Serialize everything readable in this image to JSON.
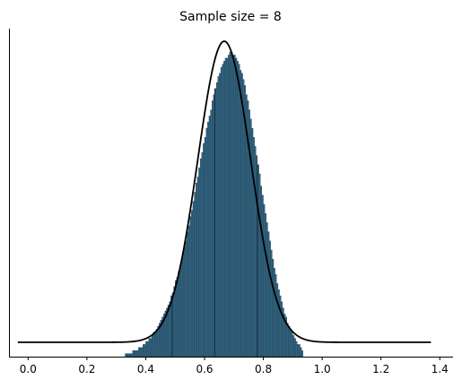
{
  "chart_data": {
    "type": "histogram",
    "title": "Sample size = 8",
    "xlabel": "",
    "ylabel": "",
    "xlim": [
      -0.065,
      1.445
    ],
    "x_ticks": [
      0.0,
      0.2,
      0.4,
      0.6,
      0.8,
      1.0,
      1.2,
      1.4
    ],
    "x_tick_labels": [
      "0.0",
      "0.2",
      "0.4",
      "0.6",
      "0.8",
      "1.0",
      "1.2",
      "1.4"
    ],
    "y_ticks_visible": false,
    "grid": false,
    "legend": "none",
    "spines": [
      "left",
      "bottom"
    ],
    "bar_color": "#31637f",
    "bar_edge_color": "#1b3a4d",
    "histogram": {
      "bin_start": 0.33,
      "bin_width": 0.005,
      "counts": [
        1,
        1,
        1,
        1,
        1,
        2,
        2,
        2,
        2,
        3,
        3,
        3,
        4,
        4,
        5,
        5,
        6,
        6,
        7,
        8,
        8,
        9,
        10,
        11,
        12,
        13,
        14,
        15,
        16,
        17,
        18,
        20,
        21,
        23,
        25,
        26,
        28,
        30,
        32,
        34,
        36,
        38,
        41,
        43,
        46,
        48,
        51,
        54,
        57,
        59,
        62,
        65,
        67,
        70,
        72,
        75,
        77,
        79,
        81,
        84,
        86,
        88,
        90,
        92,
        93,
        95,
        96,
        97,
        98,
        98,
        99,
        100,
        100,
        99,
        99,
        98,
        97,
        96,
        94,
        93,
        91,
        89,
        86,
        84,
        81,
        78,
        75,
        72,
        69,
        66,
        63,
        60,
        56,
        53,
        50,
        47,
        44,
        41,
        38,
        35,
        32,
        29,
        27,
        24,
        22,
        20,
        18,
        16,
        14,
        13,
        11,
        10,
        9,
        8,
        7,
        6,
        5,
        4,
        4,
        3,
        2
      ]
    },
    "curve": {
      "type": "normal_pdf",
      "mean": 0.667,
      "std": 0.09,
      "x_range": [
        -0.035,
        1.37
      ],
      "baseline_offset": 0.0,
      "color": "#000000"
    },
    "vertical_lines": [
      0.49,
      0.635,
      0.78
    ]
  }
}
